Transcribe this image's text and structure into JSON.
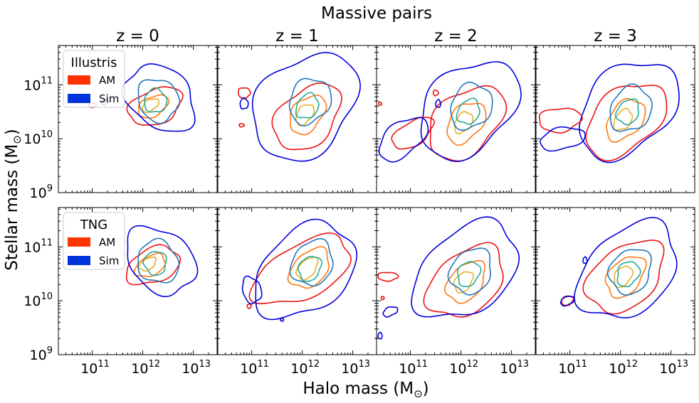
{
  "figure": {
    "suptitle": "Massive pairs",
    "xlabel": "Halo mass (M",
    "ylabel": "Stellar mass (M",
    "unit_symbol": "⊙",
    "close_paren": ")"
  },
  "chart_data": {
    "type": "contour",
    "title": "Massive pairs",
    "xlabel": "Halo mass (M⊙)",
    "ylabel": "Stellar mass (M⊙)",
    "x_scale": "log",
    "y_scale": "log",
    "xlim_log10": [
      10.33,
      13.47
    ],
    "ylim_log10": [
      9.0,
      11.73
    ],
    "x_ticks": [
      {
        "base": "10",
        "exp": "11",
        "log": 11
      },
      {
        "base": "10",
        "exp": "12",
        "log": 12
      },
      {
        "base": "10",
        "exp": "13",
        "log": 13
      }
    ],
    "y_ticks": [
      {
        "base": "10",
        "exp": "9",
        "log": 9
      },
      {
        "base": "10",
        "exp": "10",
        "log": 10
      },
      {
        "base": "10",
        "exp": "11",
        "log": 11
      }
    ],
    "column_titles": [
      "z = 0",
      "z = 1",
      "z = 2",
      "z = 3"
    ],
    "rows": [
      {
        "legend_title": "Illustris",
        "legend": [
          {
            "label": "AM",
            "color": "#ff3300"
          },
          {
            "label": "Sim",
            "color": "#0033dd"
          }
        ]
      },
      {
        "legend_title": "TNG",
        "legend": [
          {
            "label": "AM",
            "color": "#ff3300"
          },
          {
            "label": "Sim",
            "color": "#0033dd"
          }
        ]
      }
    ],
    "panels": [
      {
        "row": 0,
        "col": 0,
        "am": [
          {
            "cx": 12.25,
            "cy": 10.6,
            "sx": 0.55,
            "sy": 0.32,
            "angle": 20
          },
          {
            "cx": 12.2,
            "cy": 10.6,
            "sx": 0.32,
            "sy": 0.18,
            "angle": 25
          },
          {
            "cx": 12.15,
            "cy": 10.62,
            "sx": 0.18,
            "sy": 0.1,
            "angle": 30
          }
        ],
        "sim": [
          {
            "cx": 12.35,
            "cy": 10.75,
            "sx": 0.55,
            "sy": 0.75,
            "angle": 55
          },
          {
            "cx": 12.3,
            "cy": 10.72,
            "sx": 0.38,
            "sy": 0.42,
            "angle": 50
          },
          {
            "cx": 12.25,
            "cy": 10.7,
            "sx": 0.22,
            "sy": 0.22,
            "angle": 45
          }
        ],
        "am_islands": [
          {
            "cx": 11.0,
            "cy": 10.62,
            "sx": 0.08,
            "sy": 0.04,
            "angle": 0
          }
        ],
        "sim_islands": [
          {
            "cx": 11.25,
            "cy": 10.68,
            "sx": 0.07,
            "sy": 0.04,
            "angle": 20
          }
        ]
      },
      {
        "row": 0,
        "col": 1,
        "am": [
          {
            "cx": 12.1,
            "cy": 10.4,
            "sx": 0.75,
            "sy": 0.5,
            "angle": 40
          },
          {
            "cx": 12.1,
            "cy": 10.45,
            "sx": 0.42,
            "sy": 0.28,
            "angle": 45
          },
          {
            "cx": 12.05,
            "cy": 10.45,
            "sx": 0.22,
            "sy": 0.14,
            "angle": 50
          }
        ],
        "sim": [
          {
            "cx": 12.05,
            "cy": 10.6,
            "sx": 1.15,
            "sy": 0.85,
            "angle": 40
          },
          {
            "cx": 12.15,
            "cy": 10.7,
            "sx": 0.45,
            "sy": 0.38,
            "angle": 48
          },
          {
            "cx": 12.1,
            "cy": 10.6,
            "sx": 0.25,
            "sy": 0.2,
            "angle": 50
          }
        ],
        "am_islands": [
          {
            "cx": 10.85,
            "cy": 10.85,
            "sx": 0.12,
            "sy": 0.1,
            "angle": 0
          },
          {
            "cx": 10.8,
            "cy": 10.25,
            "sx": 0.05,
            "sy": 0.03,
            "angle": 0
          }
        ],
        "sim_islands": [
          {
            "cx": 10.85,
            "cy": 10.65,
            "sx": 0.08,
            "sy": 0.1,
            "angle": 0
          }
        ]
      },
      {
        "row": 0,
        "col": 2,
        "am": [
          {
            "cx": 12.1,
            "cy": 10.3,
            "sx": 0.85,
            "sy": 0.55,
            "angle": 38
          },
          {
            "cx": 12.1,
            "cy": 10.3,
            "sx": 0.45,
            "sy": 0.3,
            "angle": 45
          },
          {
            "cx": 12.05,
            "cy": 10.3,
            "sx": 0.22,
            "sy": 0.15,
            "angle": 50
          }
        ],
        "sim": [
          {
            "cx": 12.15,
            "cy": 10.55,
            "sx": 1.1,
            "sy": 0.75,
            "angle": 38
          },
          {
            "cx": 12.2,
            "cy": 10.6,
            "sx": 0.45,
            "sy": 0.38,
            "angle": 48
          },
          {
            "cx": 12.15,
            "cy": 10.5,
            "sx": 0.25,
            "sy": 0.2,
            "angle": 50
          }
        ],
        "am_islands": [
          {
            "cx": 11.05,
            "cy": 10.1,
            "sx": 0.45,
            "sy": 0.22,
            "angle": 30
          },
          {
            "cx": 11.5,
            "cy": 10.85,
            "sx": 0.05,
            "sy": 0.05,
            "angle": 0
          },
          {
            "cx": 10.4,
            "cy": 10.65,
            "sx": 0.03,
            "sy": 0.03,
            "angle": 0
          }
        ],
        "sim_islands": [
          {
            "cx": 10.85,
            "cy": 10.0,
            "sx": 0.55,
            "sy": 0.3,
            "angle": 35
          },
          {
            "cx": 11.55,
            "cy": 10.65,
            "sx": 0.05,
            "sy": 0.07,
            "angle": 0
          }
        ]
      },
      {
        "row": 0,
        "col": 3,
        "am": [
          {
            "cx": 12.1,
            "cy": 10.35,
            "sx": 0.9,
            "sy": 0.55,
            "angle": 36
          },
          {
            "cx": 12.1,
            "cy": 10.35,
            "sx": 0.45,
            "sy": 0.3,
            "angle": 45
          },
          {
            "cx": 12.05,
            "cy": 10.35,
            "sx": 0.22,
            "sy": 0.15,
            "angle": 50
          }
        ],
        "sim": [
          {
            "cx": 12.15,
            "cy": 10.55,
            "sx": 1.1,
            "sy": 0.75,
            "angle": 38
          },
          {
            "cx": 12.2,
            "cy": 10.55,
            "sx": 0.45,
            "sy": 0.38,
            "angle": 48
          },
          {
            "cx": 12.15,
            "cy": 10.5,
            "sx": 0.25,
            "sy": 0.2,
            "angle": 50
          }
        ],
        "am_islands": [
          {
            "cx": 10.8,
            "cy": 10.35,
            "sx": 0.42,
            "sy": 0.22,
            "angle": 5
          }
        ],
        "sim_islands": [
          {
            "cx": 10.85,
            "cy": 10.0,
            "sx": 0.45,
            "sy": 0.2,
            "angle": 10
          }
        ]
      },
      {
        "row": 1,
        "col": 0,
        "am": [
          {
            "cx": 12.2,
            "cy": 10.65,
            "sx": 0.55,
            "sy": 0.32,
            "angle": 20
          },
          {
            "cx": 12.15,
            "cy": 10.65,
            "sx": 0.32,
            "sy": 0.18,
            "angle": 25
          },
          {
            "cx": 12.1,
            "cy": 10.68,
            "sx": 0.18,
            "sy": 0.1,
            "angle": 30
          }
        ],
        "sim": [
          {
            "cx": 12.35,
            "cy": 10.75,
            "sx": 0.55,
            "sy": 0.75,
            "angle": 55
          },
          {
            "cx": 12.3,
            "cy": 10.72,
            "sx": 0.38,
            "sy": 0.42,
            "angle": 50
          },
          {
            "cx": 12.25,
            "cy": 10.7,
            "sx": 0.22,
            "sy": 0.22,
            "angle": 45
          }
        ],
        "am_islands": [],
        "sim_islands": []
      },
      {
        "row": 1,
        "col": 1,
        "am": [
          {
            "cx": 12.0,
            "cy": 10.55,
            "sx": 1.05,
            "sy": 0.5,
            "angle": 25
          },
          {
            "cx": 12.15,
            "cy": 10.6,
            "sx": 0.45,
            "sy": 0.3,
            "angle": 40
          },
          {
            "cx": 12.1,
            "cy": 10.6,
            "sx": 0.25,
            "sy": 0.15,
            "angle": 45
          }
        ],
        "sim": [
          {
            "cx": 12.05,
            "cy": 10.55,
            "sx": 1.1,
            "sy": 0.75,
            "angle": 35
          },
          {
            "cx": 12.2,
            "cy": 10.7,
            "sx": 0.45,
            "sy": 0.38,
            "angle": 48
          },
          {
            "cx": 12.15,
            "cy": 10.6,
            "sx": 0.25,
            "sy": 0.2,
            "angle": 50
          }
        ],
        "am_islands": [
          {
            "cx": 10.95,
            "cy": 9.9,
            "sx": 0.04,
            "sy": 0.04,
            "angle": 0
          }
        ],
        "sim_islands": [
          {
            "cx": 11.0,
            "cy": 10.2,
            "sx": 0.18,
            "sy": 0.25,
            "angle": 20
          },
          {
            "cx": 11.6,
            "cy": 9.65,
            "sx": 0.03,
            "sy": 0.03,
            "angle": 0
          }
        ]
      },
      {
        "row": 1,
        "col": 2,
        "am": [
          {
            "cx": 12.1,
            "cy": 10.35,
            "sx": 0.85,
            "sy": 0.55,
            "angle": 35
          },
          {
            "cx": 12.1,
            "cy": 10.35,
            "sx": 0.45,
            "sy": 0.3,
            "angle": 45
          },
          {
            "cx": 12.05,
            "cy": 10.35,
            "sx": 0.22,
            "sy": 0.15,
            "angle": 50
          }
        ],
        "sim": [
          {
            "cx": 12.1,
            "cy": 10.55,
            "sx": 1.15,
            "sy": 0.75,
            "angle": 35
          },
          {
            "cx": 12.2,
            "cy": 10.55,
            "sx": 0.45,
            "sy": 0.38,
            "angle": 48
          },
          {
            "cx": 12.15,
            "cy": 10.5,
            "sx": 0.25,
            "sy": 0.2,
            "angle": 50
          }
        ],
        "am_islands": [
          {
            "cx": 10.55,
            "cy": 10.45,
            "sx": 0.2,
            "sy": 0.08,
            "angle": 0
          },
          {
            "cx": 10.45,
            "cy": 10.05,
            "sx": 0.03,
            "sy": 0.03,
            "angle": 0
          }
        ],
        "sim_islands": [
          {
            "cx": 10.6,
            "cy": 9.8,
            "sx": 0.15,
            "sy": 0.08,
            "angle": 20
          },
          {
            "cx": 10.4,
            "cy": 9.35,
            "sx": 0.04,
            "sy": 0.06,
            "angle": 0
          }
        ]
      },
      {
        "row": 1,
        "col": 3,
        "am": [
          {
            "cx": 12.1,
            "cy": 10.45,
            "sx": 0.85,
            "sy": 0.55,
            "angle": 35
          },
          {
            "cx": 12.1,
            "cy": 10.45,
            "sx": 0.45,
            "sy": 0.3,
            "angle": 45
          },
          {
            "cx": 12.05,
            "cy": 10.45,
            "sx": 0.22,
            "sy": 0.15,
            "angle": 50
          }
        ],
        "sim": [
          {
            "cx": 12.15,
            "cy": 10.55,
            "sx": 1.1,
            "sy": 0.75,
            "angle": 38
          },
          {
            "cx": 12.2,
            "cy": 10.55,
            "sx": 0.45,
            "sy": 0.38,
            "angle": 48
          },
          {
            "cx": 12.15,
            "cy": 10.5,
            "sx": 0.25,
            "sy": 0.2,
            "angle": 50
          }
        ],
        "am_islands": [
          {
            "cx": 10.95,
            "cy": 10.0,
            "sx": 0.12,
            "sy": 0.08,
            "angle": 20
          }
        ],
        "sim_islands": [
          {
            "cx": 10.95,
            "cy": 10.0,
            "sx": 0.14,
            "sy": 0.08,
            "angle": 20
          },
          {
            "cx": 11.3,
            "cy": 10.75,
            "sx": 0.04,
            "sy": 0.06,
            "angle": 0
          }
        ]
      }
    ],
    "colors": {
      "am_outer": "#ee1111",
      "am_mid": "#ff7711",
      "am_inner": "#e8b020",
      "sim_outer": "#0000dd",
      "sim_mid": "#2277bb",
      "sim_inner": "#22aa99",
      "legend_am": "#ff3300",
      "legend_sim": "#0033dd"
    }
  }
}
